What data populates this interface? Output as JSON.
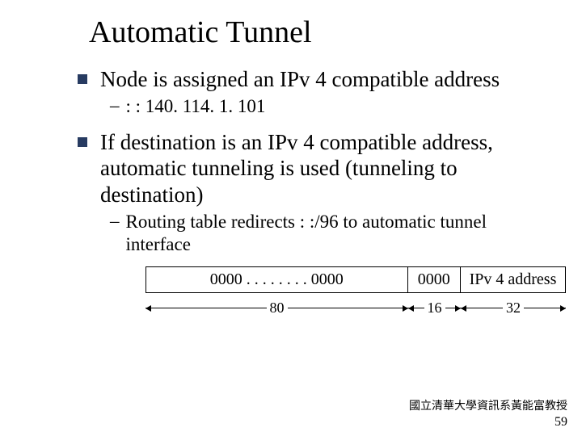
{
  "title": "Automatic Tunnel",
  "bullets": [
    {
      "text": "Node is assigned an IPv 4 compatible address",
      "subs": [
        {
          "text": ": : 140. 114. 1. 101"
        }
      ]
    },
    {
      "text": "If destination is an IPv 4 compatible address, automatic tunneling is used (tunneling to destination)",
      "subs": [
        {
          "text": "Routing table redirects : :/96 to automatic tunnel interface"
        }
      ]
    }
  ],
  "diagram": {
    "segments": [
      {
        "label": "0000 . . . . . . . . 0000",
        "width": 80
      },
      {
        "label": "0000",
        "width": 16
      },
      {
        "label": "IPv 4 address",
        "width": 32
      }
    ]
  },
  "footer": {
    "line1": "國立清華大學資訊系黃能富教授",
    "page": "59"
  },
  "colors": {
    "bullet": "#273b61",
    "text": "#000000",
    "background": "#ffffff"
  }
}
